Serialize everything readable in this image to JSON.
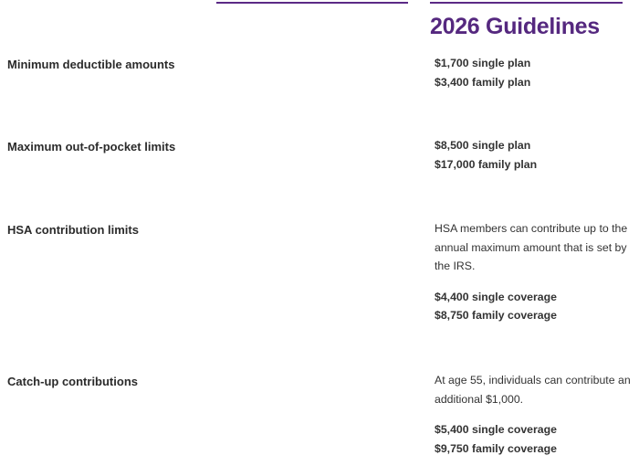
{
  "header": {
    "title": "2026 Guidelines",
    "accent_color": "#55287f"
  },
  "rows": [
    {
      "label": "Minimum deductible amounts",
      "lines": [
        "$1,700 single plan",
        "$3,400 family plan"
      ]
    },
    {
      "label": "Maximum out-of-pocket limits",
      "lines": [
        "$8,500 single plan",
        "$17,000 family plan"
      ]
    },
    {
      "label": "HSA contribution limits",
      "note": "HSA members can contribute up to the annual maximum amount that is set by the IRS.",
      "lines": [
        "$4,400 single coverage",
        "$8,750 family coverage"
      ]
    },
    {
      "label": "Catch-up contributions",
      "note": "At age 55, individuals can contribute an additional $1,000.",
      "lines": [
        "$5,400 single coverage",
        "$9,750 family coverage"
      ]
    }
  ]
}
